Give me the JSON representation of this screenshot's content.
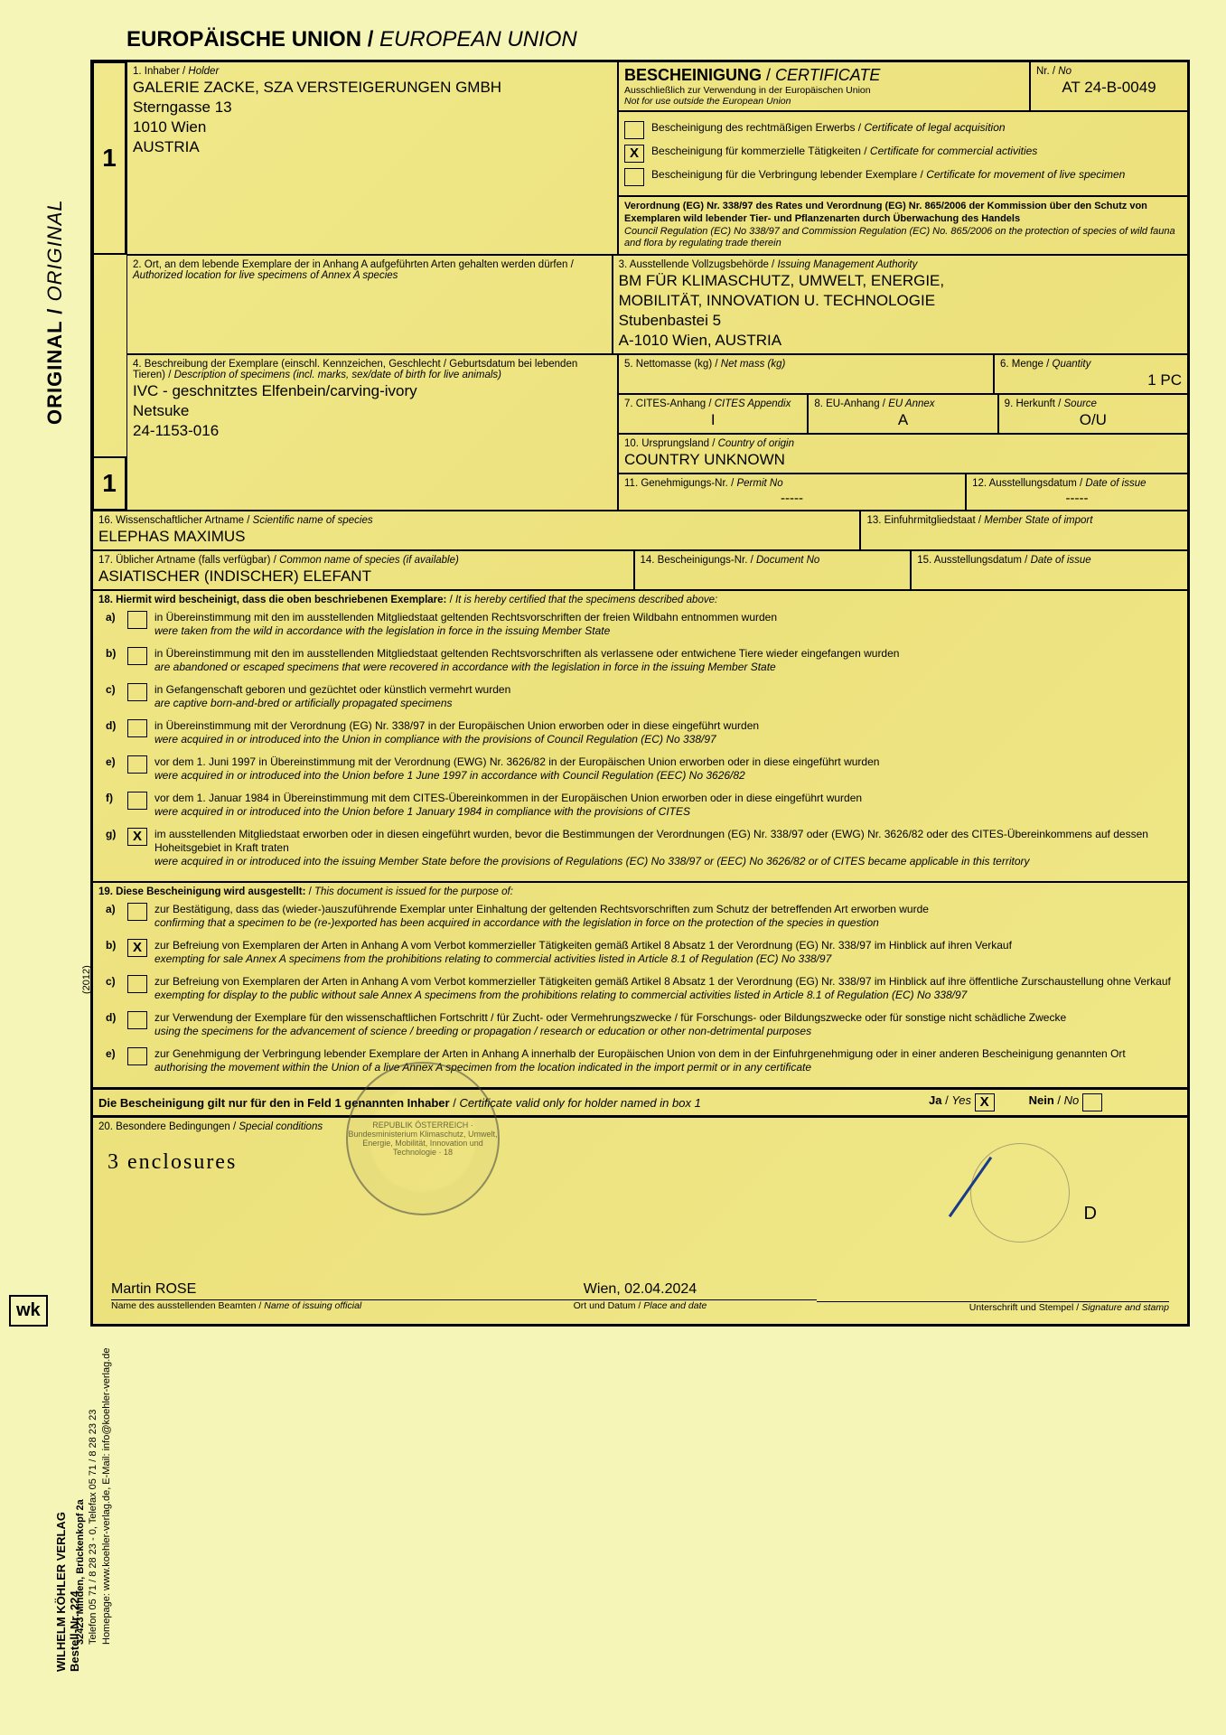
{
  "header": {
    "de": "EUROPÄISCHE UNION",
    "en": "EUROPEAN UNION"
  },
  "copy_number": "1",
  "original_label": {
    "de": "ORIGINAL",
    "en": "ORIGINAL"
  },
  "box1": {
    "label_de": "1. Inhaber",
    "label_en": "Holder",
    "name": "GALERIE ZACKE, SZA VERSTEIGERUNGEN GMBH",
    "street": "Sterngasse 13",
    "city": "1010 Wien",
    "country": "AUSTRIA"
  },
  "cert_header": {
    "de": "BESCHEINIGUNG",
    "en": "CERTIFICATE",
    "sub_de": "Ausschließlich zur Verwendung in der Europäischen Union",
    "sub_en": "Not for use outside the European Union",
    "nr_label_de": "Nr.",
    "nr_label_en": "No",
    "nr_value": "AT 24-B-0049"
  },
  "cert_types": [
    {
      "checked": false,
      "de": "Bescheinigung des rechtmäßigen Erwerbs",
      "en": "Certificate of legal acquisition"
    },
    {
      "checked": true,
      "de": "Bescheinigung für kommerzielle Tätigkeiten",
      "en": "Certificate for commercial activities"
    },
    {
      "checked": false,
      "de": "Bescheinigung für die Verbringung lebender Exemplare",
      "en": "Certificate for movement of live specimen"
    }
  ],
  "regulation": {
    "de": "Verordnung (EG) Nr. 338/97 des Rates und Verordnung (EG) Nr. 865/2006 der Kommission über den Schutz von Exemplaren wild lebender Tier- und Pflanzenarten durch Überwachung des Handels",
    "en": "Council Regulation (EC) No 338/97 and Commission Regulation (EC) No. 865/2006 on the protection of species of wild fauna and flora by regulating trade therein"
  },
  "box2": {
    "label_de": "2. Ort, an dem lebende Exemplare der in Anhang A aufgeführten Arten gehalten werden dürfen /",
    "label_en": "Authorized location for live specimens of Annex A species"
  },
  "box3": {
    "label_de": "3. Ausstellende Vollzugsbehörde",
    "label_en": "Issuing Management Authority",
    "line1": "BM FÜR KLIMASCHUTZ, UMWELT, ENERGIE,",
    "line2": "MOBILITÄT, INNOVATION U. TECHNOLOGIE",
    "street": "Stubenbastei 5",
    "city": "A-1010 Wien, AUSTRIA"
  },
  "box4": {
    "label_de": "4. Beschreibung der Exemplare (einschl. Kennzeichen, Geschlecht / Geburtsdatum bei lebenden Tieren)",
    "label_en": "Description of specimens (incl. marks, sex/date of birth for live animals)",
    "line1": "IVC - geschnitztes Elfenbein/carving-ivory",
    "line2": "Netsuke",
    "line3": "24-1153-016"
  },
  "box5": {
    "label_de": "5. Nettomasse (kg)",
    "label_en": "Net mass (kg)",
    "value": ""
  },
  "box6": {
    "label_de": "6. Menge",
    "label_en": "Quantity",
    "value": "1 PC"
  },
  "box7": {
    "label_de": "7. CITES-Anhang",
    "label_en": "CITES Appendix",
    "value": "I"
  },
  "box8": {
    "label_de": "8. EU-Anhang",
    "label_en": "EU Annex",
    "value": "A"
  },
  "box9": {
    "label_de": "9. Herkunft",
    "label_en": "Source",
    "value": "O/U"
  },
  "box10": {
    "label_de": "10. Ursprungsland",
    "label_en": "Country of origin",
    "value": "COUNTRY UNKNOWN"
  },
  "box11": {
    "label_de": "11. Genehmigungs-Nr.",
    "label_en": "Permit No",
    "value": "-----"
  },
  "box12": {
    "label_de": "12. Ausstellungsdatum",
    "label_en": "Date of issue",
    "value": "-----"
  },
  "box13": {
    "label_de": "13. Einfuhrmitgliedstaat",
    "label_en": "Member State of import",
    "value": ""
  },
  "box14": {
    "label_de": "14. Bescheinigungs-Nr.",
    "label_en": "Document No",
    "value": ""
  },
  "box15": {
    "label_de": "15. Ausstellungsdatum",
    "label_en": "Date of issue",
    "value": ""
  },
  "box16": {
    "label_de": "16. Wissenschaftlicher Artname",
    "label_en": "Scientific name of species",
    "value": "ELEPHAS MAXIMUS"
  },
  "box17": {
    "label_de": "17. Üblicher Artname (falls verfügbar)",
    "label_en": "Common name of species (if available)",
    "value": "ASIATISCHER (INDISCHER) ELEFANT"
  },
  "box18": {
    "label_de": "18. Hiermit wird bescheinigt, dass die oben beschriebenen Exemplare:",
    "label_en": "It is hereby certified that the specimens described above:",
    "options": [
      {
        "letter": "a)",
        "checked": false,
        "de": "in Übereinstimmung mit den im ausstellenden Mitgliedstaat geltenden Rechtsvorschriften der freien Wildbahn entnommen wurden",
        "en": "were taken from the wild in accordance with the legislation in force in the issuing Member State"
      },
      {
        "letter": "b)",
        "checked": false,
        "de": "in Übereinstimmung mit den im ausstellenden Mitgliedstaat geltenden Rechtsvorschriften als verlassene oder entwichene Tiere wieder eingefangen wurden",
        "en": "are abandoned or escaped specimens that were recovered in accordance with the legislation in force in the issuing Member State"
      },
      {
        "letter": "c)",
        "checked": false,
        "de": "in Gefangenschaft geboren und gezüchtet oder künstlich vermehrt wurden",
        "en": "are captive born-and-bred or artificially propagated specimens"
      },
      {
        "letter": "d)",
        "checked": false,
        "de": "in Übereinstimmung mit der Verordnung (EG) Nr. 338/97 in der Europäischen Union erworben oder in diese eingeführt wurden",
        "en": "were acquired in or introduced into the Union in compliance with the provisions of Council Regulation (EC) No 338/97"
      },
      {
        "letter": "e)",
        "checked": false,
        "de": "vor dem 1. Juni 1997 in Übereinstimmung mit der Verordnung (EWG) Nr. 3626/82 in der Europäischen Union erworben oder in diese eingeführt wurden",
        "en": "were acquired in or introduced into the Union before 1 June 1997 in accordance with Council Regulation (EEC) No 3626/82"
      },
      {
        "letter": "f)",
        "checked": false,
        "de": "vor dem 1. Januar 1984 in Übereinstimmung mit dem CITES-Übereinkommen in der Europäischen Union erworben oder in diese eingeführt wurden",
        "en": "were acquired in or introduced into the Union before 1 January 1984 in compliance with the provisions of CITES"
      },
      {
        "letter": "g)",
        "checked": true,
        "de": "im ausstellenden Mitgliedstaat erworben oder in diesen eingeführt wurden, bevor die Bestimmungen der Verordnungen (EG) Nr. 338/97 oder (EWG) Nr. 3626/82 oder des CITES-Übereinkommens auf dessen Hoheitsgebiet in Kraft traten",
        "en": "were acquired in or introduced into the issuing Member State before the provisions of Regulations (EC) No 338/97 or (EEC) No 3626/82 or of CITES became applicable in this territory"
      }
    ]
  },
  "box19": {
    "label_de": "19. Diese Bescheinigung wird ausgestellt:",
    "label_en": "This document is issued for the purpose of:",
    "options": [
      {
        "letter": "a)",
        "checked": false,
        "de": "zur Bestätigung, dass das (wieder-)auszuführende Exemplar unter Einhaltung der geltenden Rechtsvorschriften zum Schutz der betreffenden Art erworben wurde",
        "en": "confirming that a specimen to be (re-)exported has been acquired in accordance with the legislation in force on the protection of the species in question"
      },
      {
        "letter": "b)",
        "checked": true,
        "de": "zur Befreiung von Exemplaren der Arten in Anhang A vom Verbot kommerzieller Tätigkeiten gemäß Artikel 8 Absatz 1 der Verordnung (EG) Nr. 338/97 im Hinblick auf ihren Verkauf",
        "en": "exempting for sale Annex A specimens from the prohibitions relating to commercial activities listed in Article 8.1 of Regulation (EC) No 338/97"
      },
      {
        "letter": "c)",
        "checked": false,
        "de": "zur Befreiung von Exemplaren der Arten in Anhang A vom Verbot kommerzieller Tätigkeiten gemäß Artikel 8 Absatz 1 der Verordnung (EG) Nr. 338/97 im Hinblick auf ihre öffentliche Zurschaustellung ohne Verkauf",
        "en": "exempting for display to the public without sale Annex A specimens from the prohibitions relating to commercial activities listed in Article 8.1 of Regulation (EC) No 338/97"
      },
      {
        "letter": "d)",
        "checked": false,
        "de": "zur Verwendung der Exemplare für den wissenschaftlichen Fortschritt / für Zucht- oder Vermehrungszwecke / für Forschungs- oder Bildungszwecke oder für sonstige nicht schädliche Zwecke",
        "en": "using the specimens for the advancement of science / breeding or propagation / research or education or other non-detrimental purposes"
      },
      {
        "letter": "e)",
        "checked": false,
        "de": "zur Genehmigung der Verbringung lebender Exemplare der Arten in Anhang A innerhalb der Europäischen Union von dem in der Einfuhrgenehmigung oder in einer anderen Bescheinigung genannten Ort",
        "en": "authorising the movement within the Union of a live Annex A specimen from the location indicated in the import permit or in any certificate"
      }
    ]
  },
  "validity": {
    "de": "Die Bescheinigung gilt nur für den in Feld 1 genannten Inhaber",
    "en": "Certificate valid only for holder named in box 1",
    "yes_de": "Ja",
    "yes_en": "Yes",
    "yes_checked": true,
    "no_de": "Nein",
    "no_en": "No",
    "no_checked": false
  },
  "box20": {
    "label_de": "20. Besondere Bedingungen",
    "label_en": "Special conditions",
    "handwritten": "3 enclosures"
  },
  "footer": {
    "official_name": "Martin ROSE",
    "official_label_de": "Name des ausstellenden Beamten",
    "official_label_en": "Name of issuing official",
    "place_date": "Wien, 02.04.2024",
    "place_label_de": "Ort und Datum",
    "place_label_en": "Place and date",
    "sig_label_de": "Unterschrift und Stempel",
    "sig_label_en": "Signature and stamp",
    "copy_letter": "D"
  },
  "stamp": {
    "text": "REPUBLIK ÖSTERREICH · Bundesministerium Klimaschutz, Umwelt, Energie, Mobilität, Innovation und Technologie · 18"
  },
  "publisher": {
    "name": "WILHELM KÖHLER VERLAG",
    "bestell": "Bestell-Nr. 224",
    "addr1": "32423 Minden, Brückenkopf 2a",
    "addr2": "Telefon 05 71 / 8 28 23 - 0, Telefax 05 71 / 8 28 23 23",
    "addr3": "Homepage: www.koehler-verlag.de, E-Mail: info@koehler-verlag.de",
    "year": "(2012)"
  },
  "colors": {
    "paper": "#f5f5b8",
    "field": "#ece17c",
    "border": "#000000"
  }
}
